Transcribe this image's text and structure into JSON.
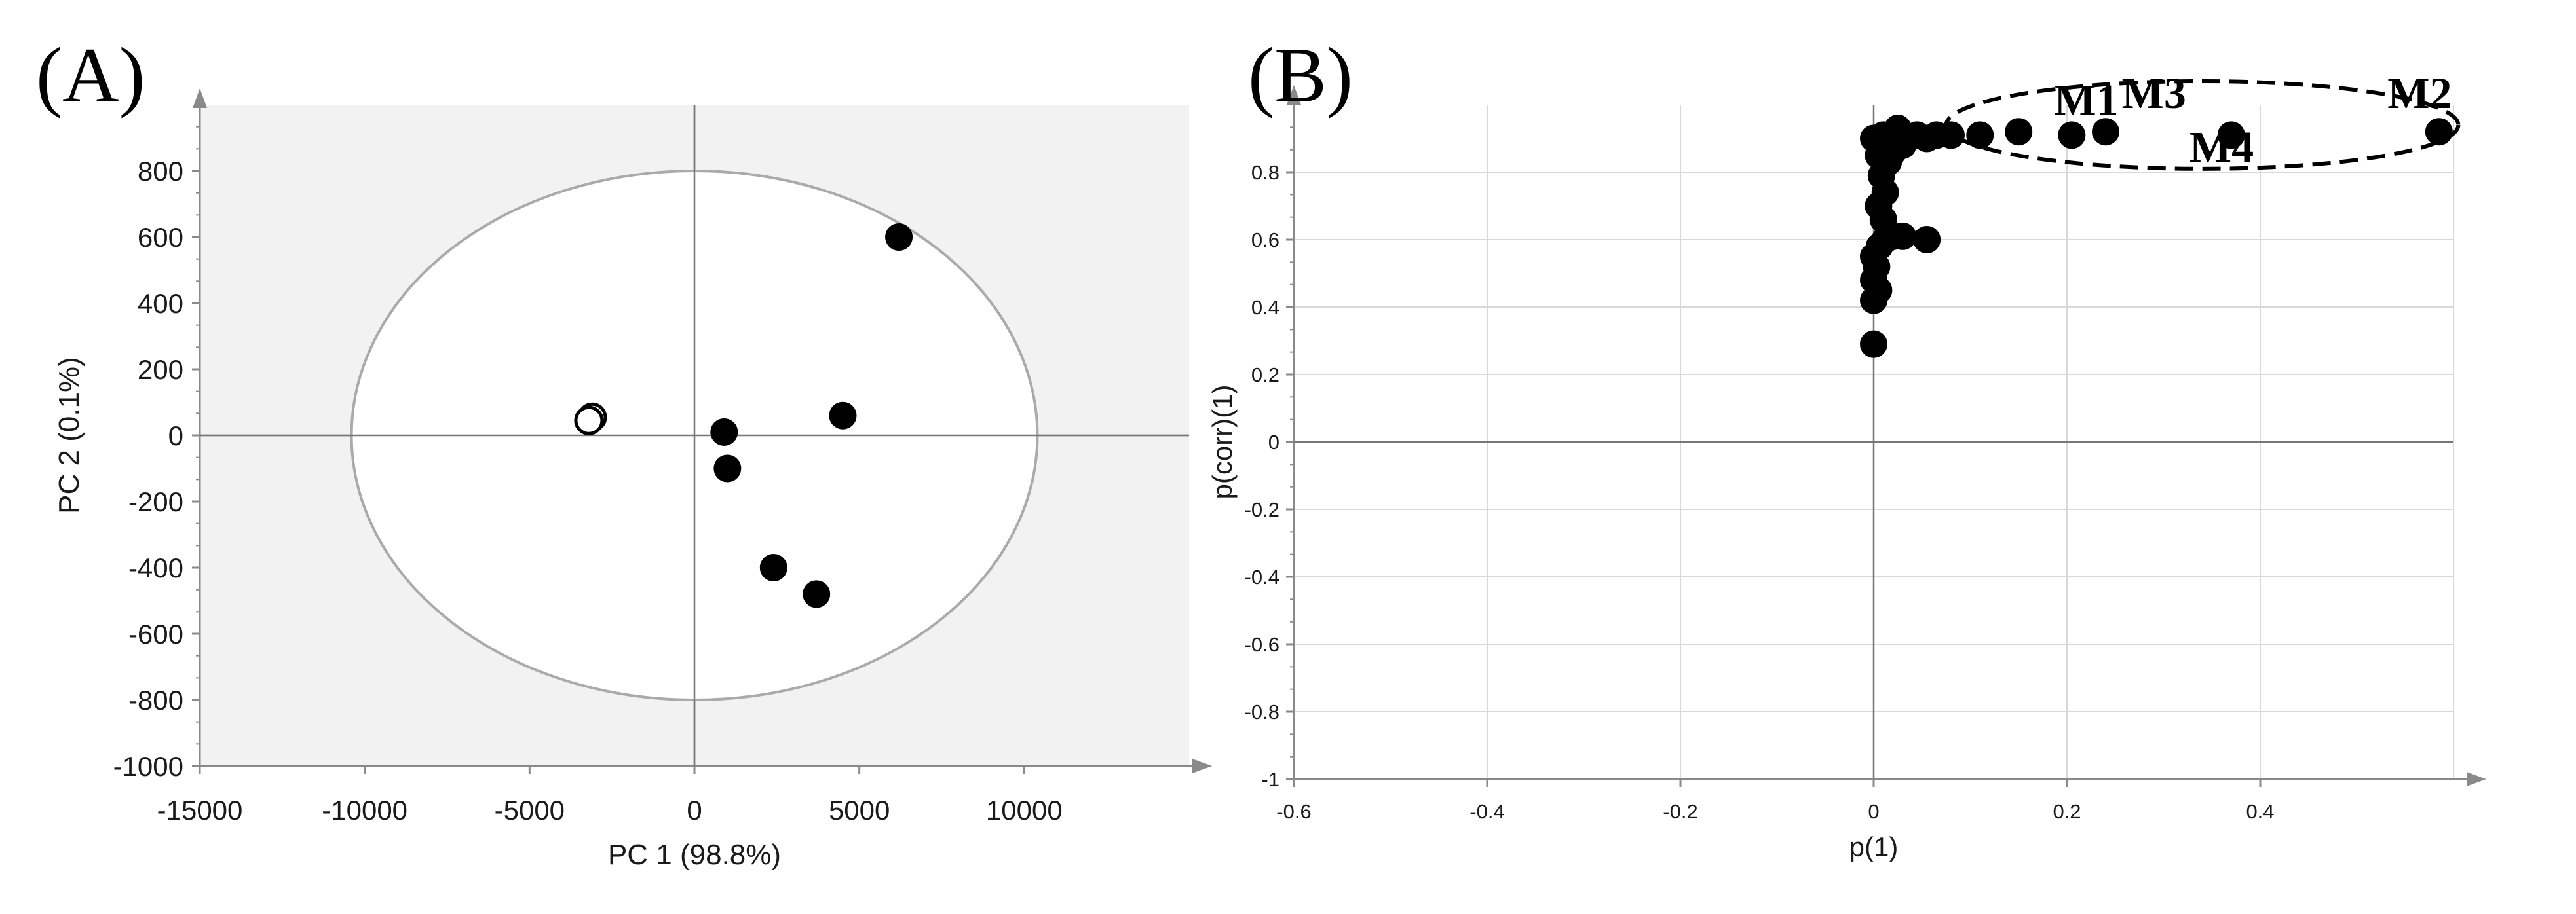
{
  "chart_data": [
    {
      "type": "scatter",
      "panel_label": "(A)",
      "title": "",
      "xlabel": "PC 1 (98.8%)",
      "ylabel": "PC 2 (0.1%)",
      "xlim": [
        -15000,
        15000
      ],
      "ylim": [
        -1000,
        1000
      ],
      "xticks": [
        -15000,
        -10000,
        -5000,
        0,
        5000,
        10000
      ],
      "yticks": [
        -1000,
        -800,
        -600,
        -400,
        -200,
        0,
        200,
        400,
        600,
        800
      ],
      "plot_background": "#f2f2f2",
      "grid": false,
      "ellipse": {
        "rx": 10400,
        "ry": 800,
        "color": "#aaaaaa"
      },
      "series": [
        {
          "marker": "filled-circle",
          "color": "#000000",
          "points": [
            {
              "x": 6200,
              "y": 600
            },
            {
              "x": 4500,
              "y": 60
            },
            {
              "x": 900,
              "y": 10
            },
            {
              "x": 1000,
              "y": -100
            },
            {
              "x": 2400,
              "y": -400
            },
            {
              "x": 3700,
              "y": -480
            }
          ]
        },
        {
          "marker": "open-circle",
          "color": "#000000",
          "points": [
            {
              "x": -3100,
              "y": 55
            },
            {
              "x": -3200,
              "y": 45
            }
          ]
        }
      ]
    },
    {
      "type": "scatter",
      "panel_label": "(B)",
      "title": "",
      "xlabel": "p(1)",
      "ylabel": "p(corr)(1)",
      "xlim": [
        -0.6,
        0.6
      ],
      "ylim": [
        -1,
        1
      ],
      "xticks": [
        "-0.6",
        "-0.4",
        "-0.2",
        "0",
        "0.2",
        "0.4"
      ],
      "yticks": [
        "-1",
        "-0.8",
        "-0.6",
        "-0.4",
        "-0.2",
        "0",
        "0.2",
        "0.4",
        "0.6",
        "0.8"
      ],
      "plot_background": "#ffffff",
      "grid": true,
      "series": [
        {
          "marker": "filled-circle",
          "color": "#000000",
          "points": [
            {
              "x": 0.0,
              "y": 0.29
            },
            {
              "x": 0.0,
              "y": 0.42
            },
            {
              "x": 0.005,
              "y": 0.45
            },
            {
              "x": 0.0,
              "y": 0.48
            },
            {
              "x": 0.003,
              "y": 0.52
            },
            {
              "x": 0.0,
              "y": 0.55
            },
            {
              "x": 0.006,
              "y": 0.58
            },
            {
              "x": 0.012,
              "y": 0.6
            },
            {
              "x": 0.02,
              "y": 0.61
            },
            {
              "x": 0.03,
              "y": 0.61
            },
            {
              "x": 0.055,
              "y": 0.6
            },
            {
              "x": 0.01,
              "y": 0.66
            },
            {
              "x": 0.005,
              "y": 0.7
            },
            {
              "x": 0.012,
              "y": 0.74
            },
            {
              "x": 0.008,
              "y": 0.79
            },
            {
              "x": 0.015,
              "y": 0.83
            },
            {
              "x": 0.005,
              "y": 0.85
            },
            {
              "x": 0.01,
              "y": 0.88
            },
            {
              "x": 0.02,
              "y": 0.86
            },
            {
              "x": 0.03,
              "y": 0.88
            },
            {
              "x": 0.0,
              "y": 0.9
            },
            {
              "x": 0.01,
              "y": 0.91
            },
            {
              "x": 0.02,
              "y": 0.9
            },
            {
              "x": 0.035,
              "y": 0.9
            },
            {
              "x": 0.045,
              "y": 0.91
            },
            {
              "x": 0.055,
              "y": 0.9
            },
            {
              "x": 0.065,
              "y": 0.91
            },
            {
              "x": 0.08,
              "y": 0.91
            },
            {
              "x": 0.025,
              "y": 0.93
            },
            {
              "x": 0.11,
              "y": 0.91
            },
            {
              "x": 0.15,
              "y": 0.92
            },
            {
              "x": 0.205,
              "y": 0.91
            },
            {
              "x": 0.24,
              "y": 0.92
            },
            {
              "x": 0.37,
              "y": 0.91
            },
            {
              "x": 0.585,
              "y": 0.92
            }
          ]
        }
      ],
      "annotations": [
        {
          "text": "M1",
          "x": 0.22,
          "y": 0.97
        },
        {
          "text": "M3",
          "x": 0.29,
          "y": 0.99
        },
        {
          "text": "M2",
          "x": 0.565,
          "y": 0.99
        },
        {
          "text": "M4",
          "x": 0.36,
          "y": 0.83
        }
      ],
      "highlight_ellipse": {
        "cx": 0.34,
        "cy": 0.94,
        "rx": 0.265,
        "ry": 0.13,
        "style": "dashed"
      }
    }
  ]
}
